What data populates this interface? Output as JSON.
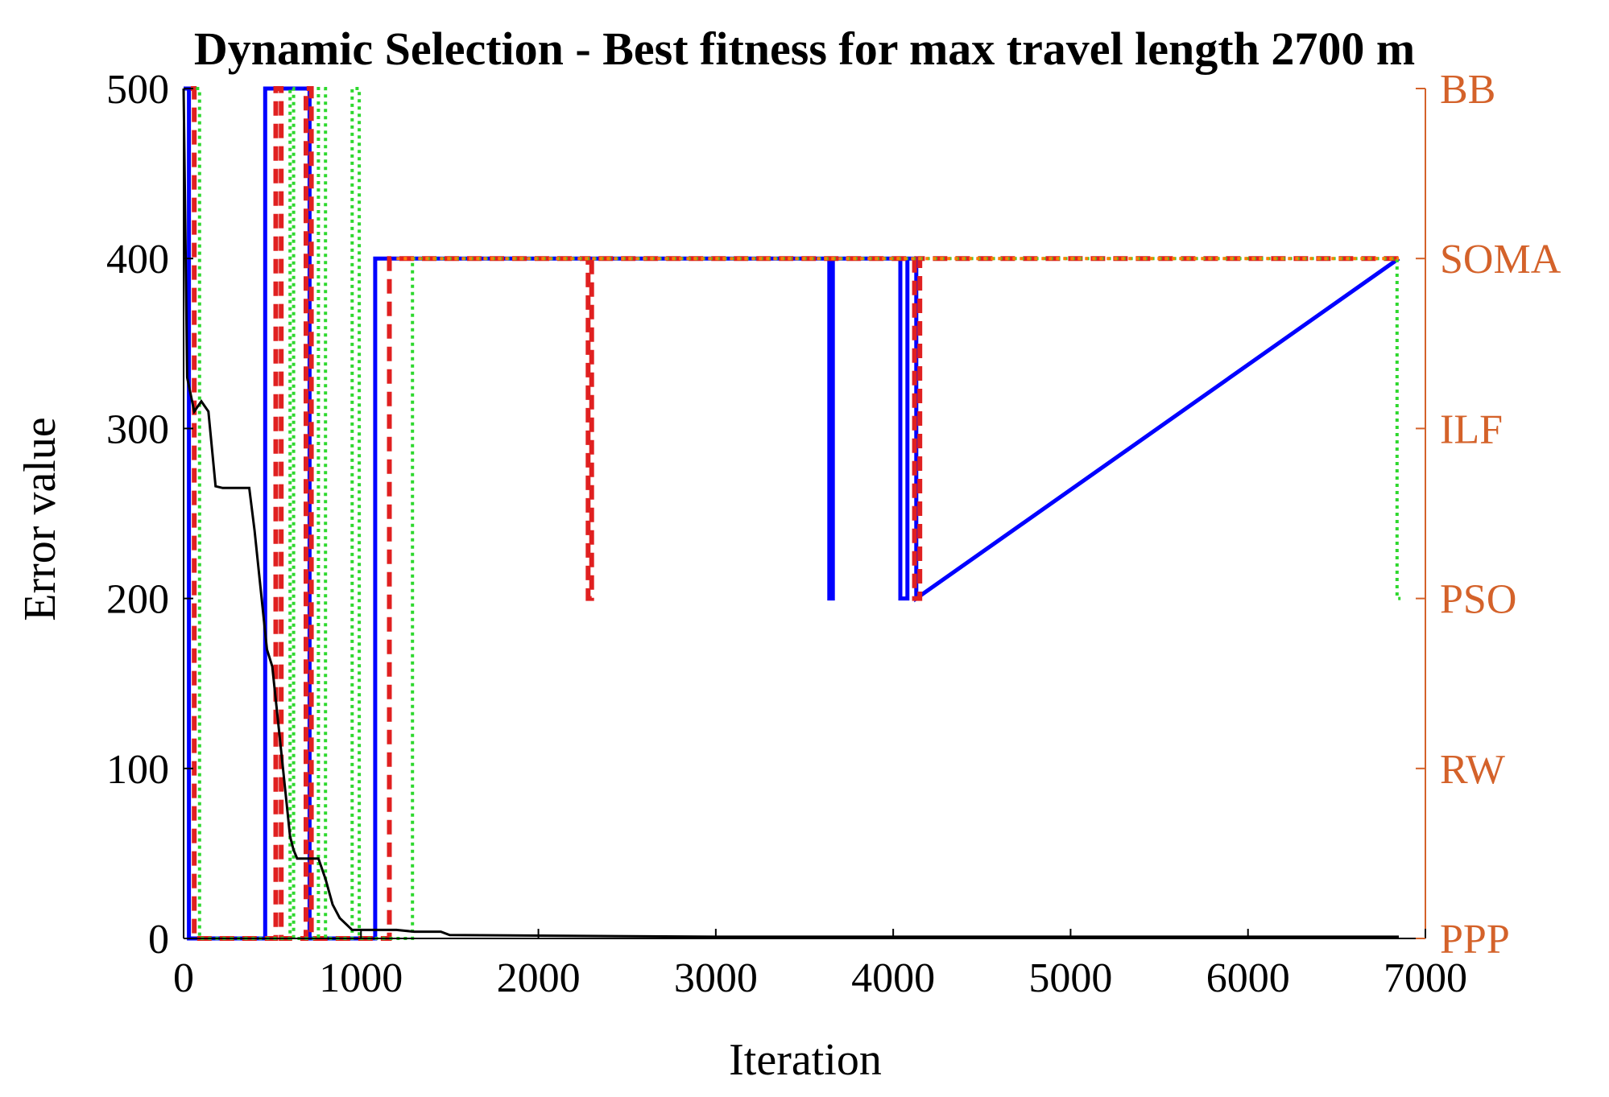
{
  "chart_data": {
    "type": "line",
    "title": "Dynamic Selection - Best fitness for max travel length 2700 m",
    "xlabel": "Iteration",
    "ylabel": "Error value",
    "xlim": [
      0,
      7000
    ],
    "ylim": [
      0,
      500
    ],
    "x_ticks": [
      0,
      1000,
      2000,
      3000,
      4000,
      5000,
      6000,
      7000
    ],
    "y_ticks": [
      0,
      100,
      200,
      300,
      400,
      500
    ],
    "right_axis": {
      "categories": [
        "PPP",
        "RW",
        "PSO",
        "ILF",
        "SOMA",
        "BB"
      ],
      "values": [
        0,
        100,
        200,
        300,
        400,
        500
      ],
      "color": "#d4622a"
    },
    "grid": false,
    "series": [
      {
        "color": "#000000",
        "style": "solid",
        "axis": "left",
        "x": [
          0,
          20,
          60,
          100,
          140,
          180,
          220,
          300,
          370,
          400,
          440,
          470,
          500,
          540,
          580,
          600,
          620,
          640,
          700,
          760,
          800,
          840,
          880,
          950,
          1050,
          1200,
          1300,
          1450,
          1500,
          3000,
          4500,
          6850
        ],
        "y": [
          500,
          330,
          310,
          316,
          310,
          266,
          265,
          265,
          265,
          240,
          200,
          170,
          160,
          120,
          80,
          60,
          52,
          47,
          47,
          47,
          35,
          20,
          12,
          5,
          5,
          5,
          4,
          4,
          2,
          1,
          1,
          1
        ]
      },
      {
        "color": "#0000ff",
        "style": "solid",
        "axis": "right",
        "x": [
          0,
          30,
          30,
          460,
          460,
          710,
          710,
          1080,
          1080,
          3640,
          3640,
          3660,
          3660,
          4040,
          4040,
          4080,
          4080,
          4130,
          4130,
          6850
        ],
        "y": [
          500,
          500,
          0,
          0,
          500,
          500,
          0,
          0,
          400,
          400,
          200,
          200,
          400,
          400,
          200,
          200,
          400,
          400,
          200,
          400
        ]
      },
      {
        "color": "#e02020",
        "style": "dashed",
        "axis": "right",
        "x": [
          40,
          60,
          60,
          520,
          520,
          550,
          550,
          690,
          690,
          720,
          720,
          1160,
          1160,
          1190,
          1190,
          2280,
          2280,
          2300,
          2300,
          4120,
          4120,
          4150,
          4150,
          6850
        ],
        "y": [
          500,
          500,
          0,
          0,
          500,
          500,
          0,
          0,
          500,
          500,
          0,
          0,
          400,
          400,
          400,
          400,
          200,
          200,
          400,
          400,
          200,
          200,
          400,
          400
        ]
      },
      {
        "color": "#2ed82e",
        "style": "dotted",
        "axis": "right",
        "x": [
          70,
          90,
          90,
          600,
          600,
          620,
          620,
          760,
          760,
          800,
          800,
          950,
          950,
          990,
          990,
          1290,
          1290,
          6840,
          6840,
          6860
        ],
        "y": [
          500,
          500,
          0,
          0,
          500,
          500,
          0,
          0,
          500,
          500,
          0,
          0,
          500,
          500,
          0,
          0,
          400,
          400,
          200,
          200
        ]
      },
      {
        "color": "#ff7f00",
        "style": "dotted",
        "axis": "right",
        "x": [
          1200,
          6850
        ],
        "y": [
          400,
          400
        ]
      }
    ]
  }
}
